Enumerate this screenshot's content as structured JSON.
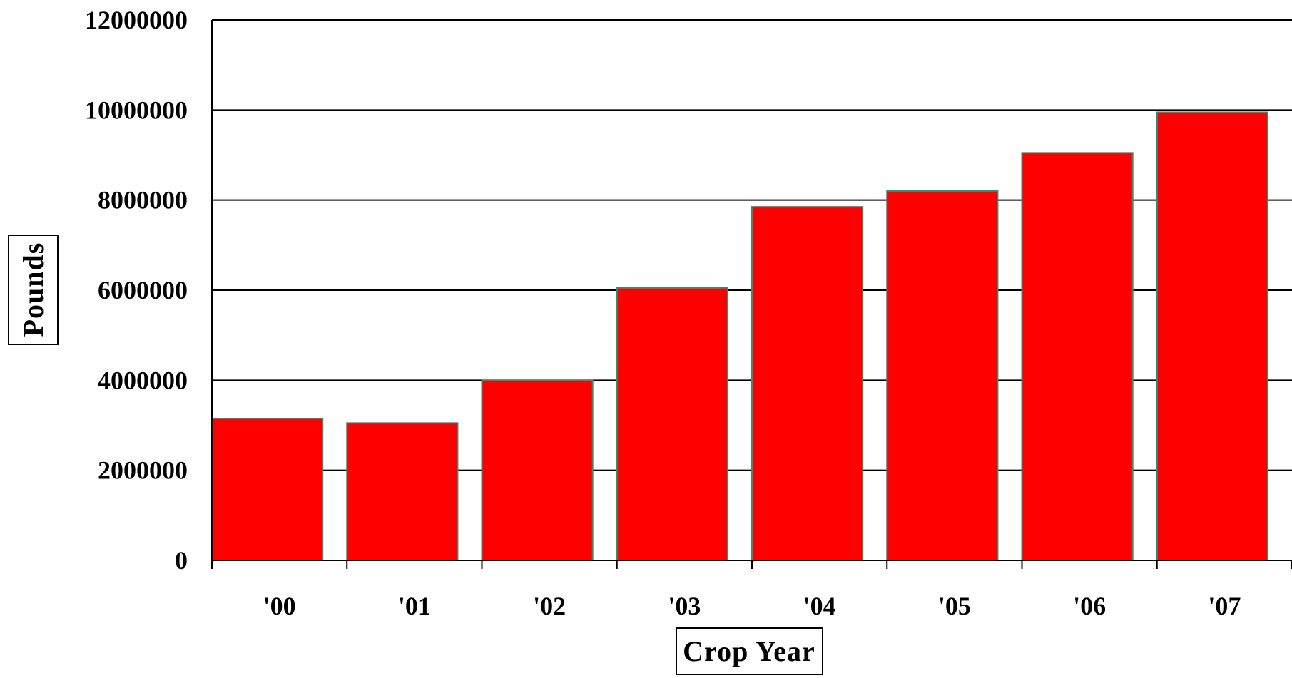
{
  "chart_data": {
    "type": "bar",
    "title": "",
    "xlabel": "Crop Year",
    "ylabel": "Pounds",
    "categories": [
      "'00",
      "'01",
      "'02",
      "'03",
      "'04",
      "'05",
      "'06",
      "'07"
    ],
    "values": [
      3150000,
      3050000,
      4000000,
      6050000,
      7850000,
      8200000,
      9050000,
      9950000
    ],
    "ylim": [
      0,
      12000000
    ],
    "yticks": [
      0,
      2000000,
      4000000,
      6000000,
      8000000,
      10000000,
      12000000
    ],
    "ytick_labels": [
      "0",
      "2000000",
      "4000000",
      "6000000",
      "8000000",
      "10000000",
      "12000000"
    ],
    "grid": true,
    "legend": "none",
    "bar_color": "#ff0000",
    "bar_edge_color": "#3a8a6e"
  }
}
